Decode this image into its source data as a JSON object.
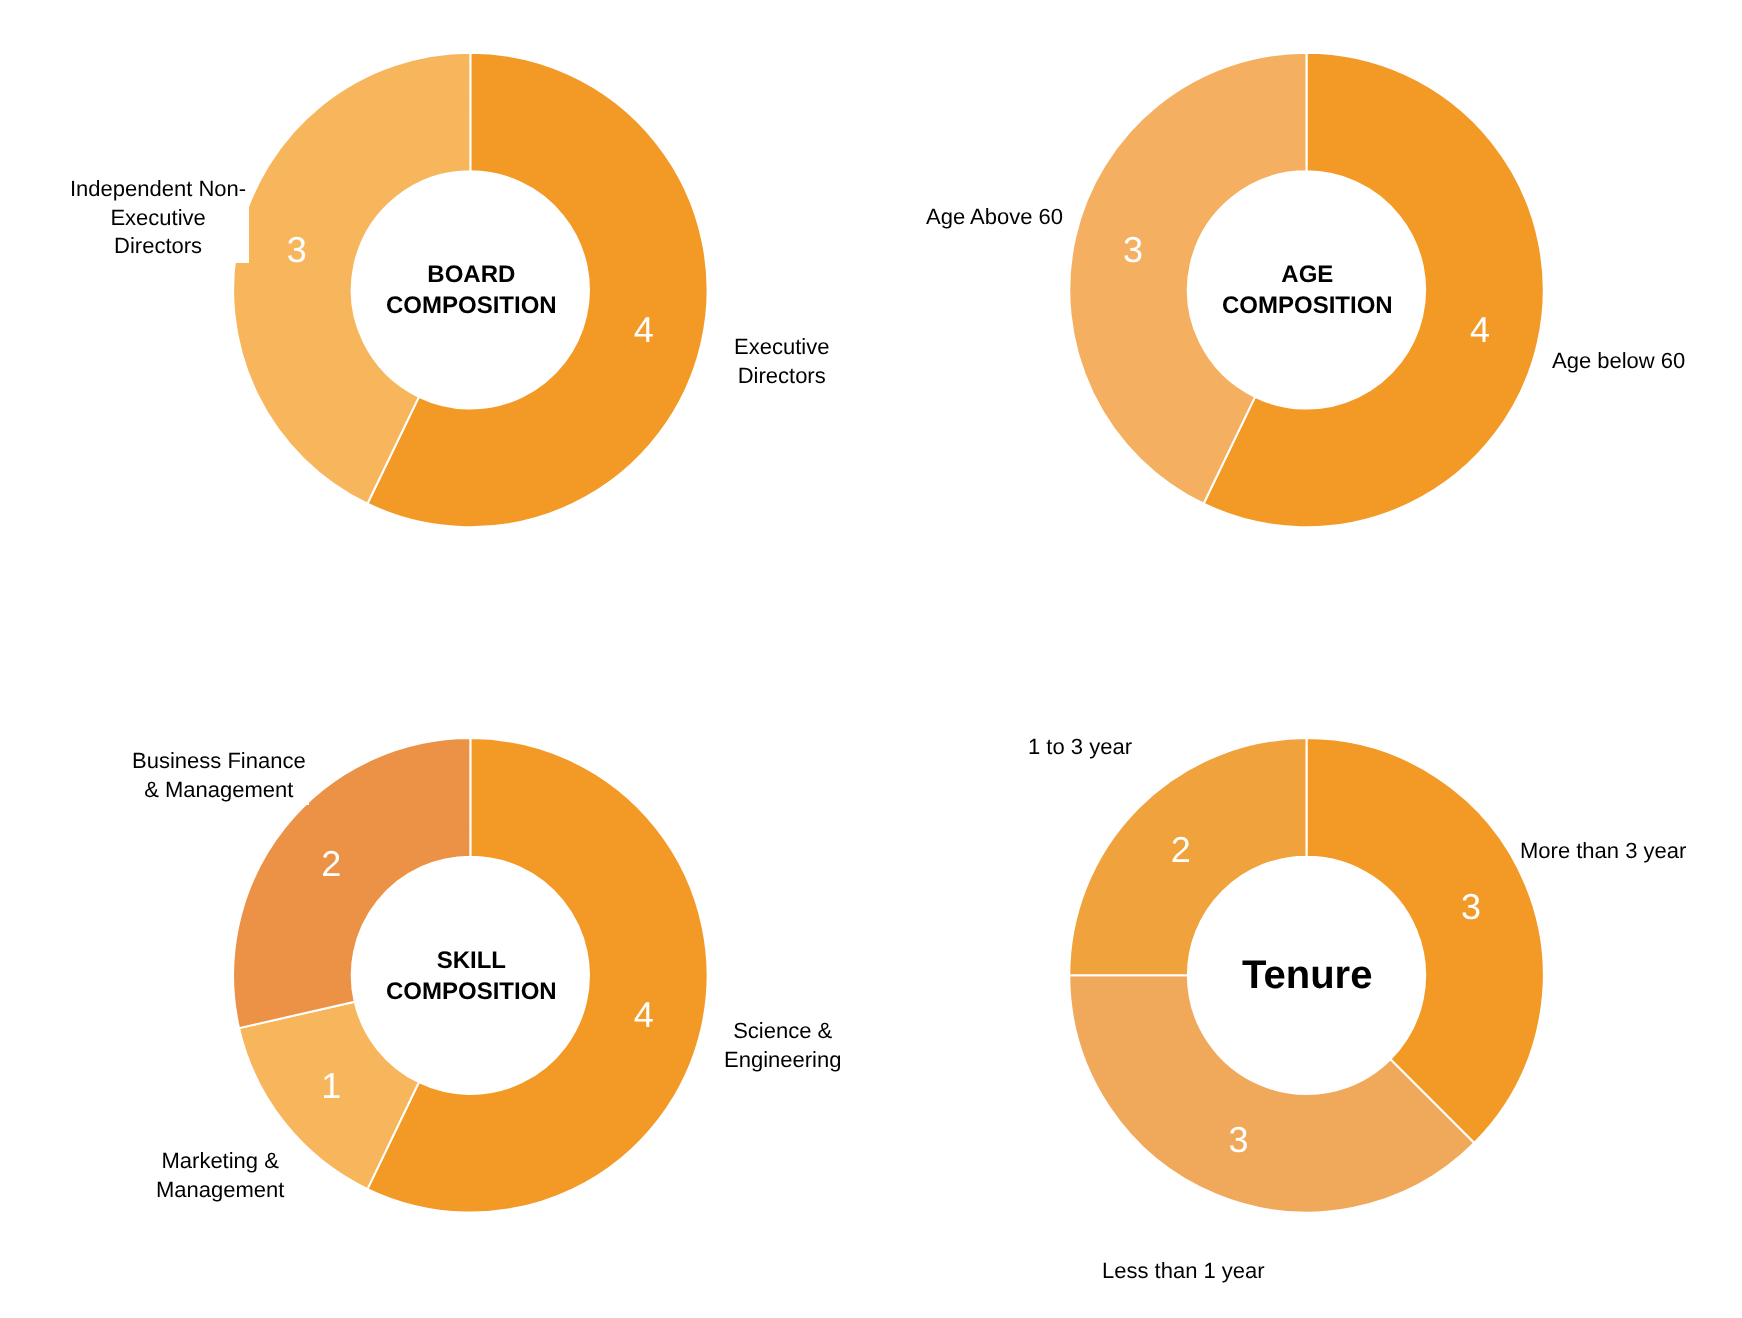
{
  "chart_data": [
    {
      "type": "donut",
      "title": "BOARD COMPOSITION",
      "categories": [
        "Executive Directors",
        "Independent Non-Executive Directors"
      ],
      "values": [
        4,
        3
      ],
      "colors": [
        "#f39a26",
        "#f7b55c"
      ],
      "data_labels": true
    },
    {
      "type": "donut",
      "title": "AGE COMPOSITION",
      "categories": [
        "Age below 60",
        "Age Above 60"
      ],
      "values": [
        4,
        3
      ],
      "colors": [
        "#f39a26",
        "#f4b060"
      ],
      "data_labels": true
    },
    {
      "type": "donut",
      "title": "SKILL COMPOSITION",
      "categories": [
        "Science & Engineering",
        "Marketing & Management",
        "Business Finance & Management"
      ],
      "values": [
        4,
        1,
        2
      ],
      "colors": [
        "#f39a26",
        "#f7b55c",
        "#ec9246"
      ],
      "data_labels": true
    },
    {
      "type": "donut",
      "title": "Tenure",
      "categories": [
        "More than 3 year",
        "Less than 1 year",
        "1 to 3 year"
      ],
      "values": [
        3,
        3,
        2
      ],
      "colors": [
        "#f39a26",
        "#f0a95a",
        "#f0a23c"
      ],
      "data_labels": true
    }
  ]
}
